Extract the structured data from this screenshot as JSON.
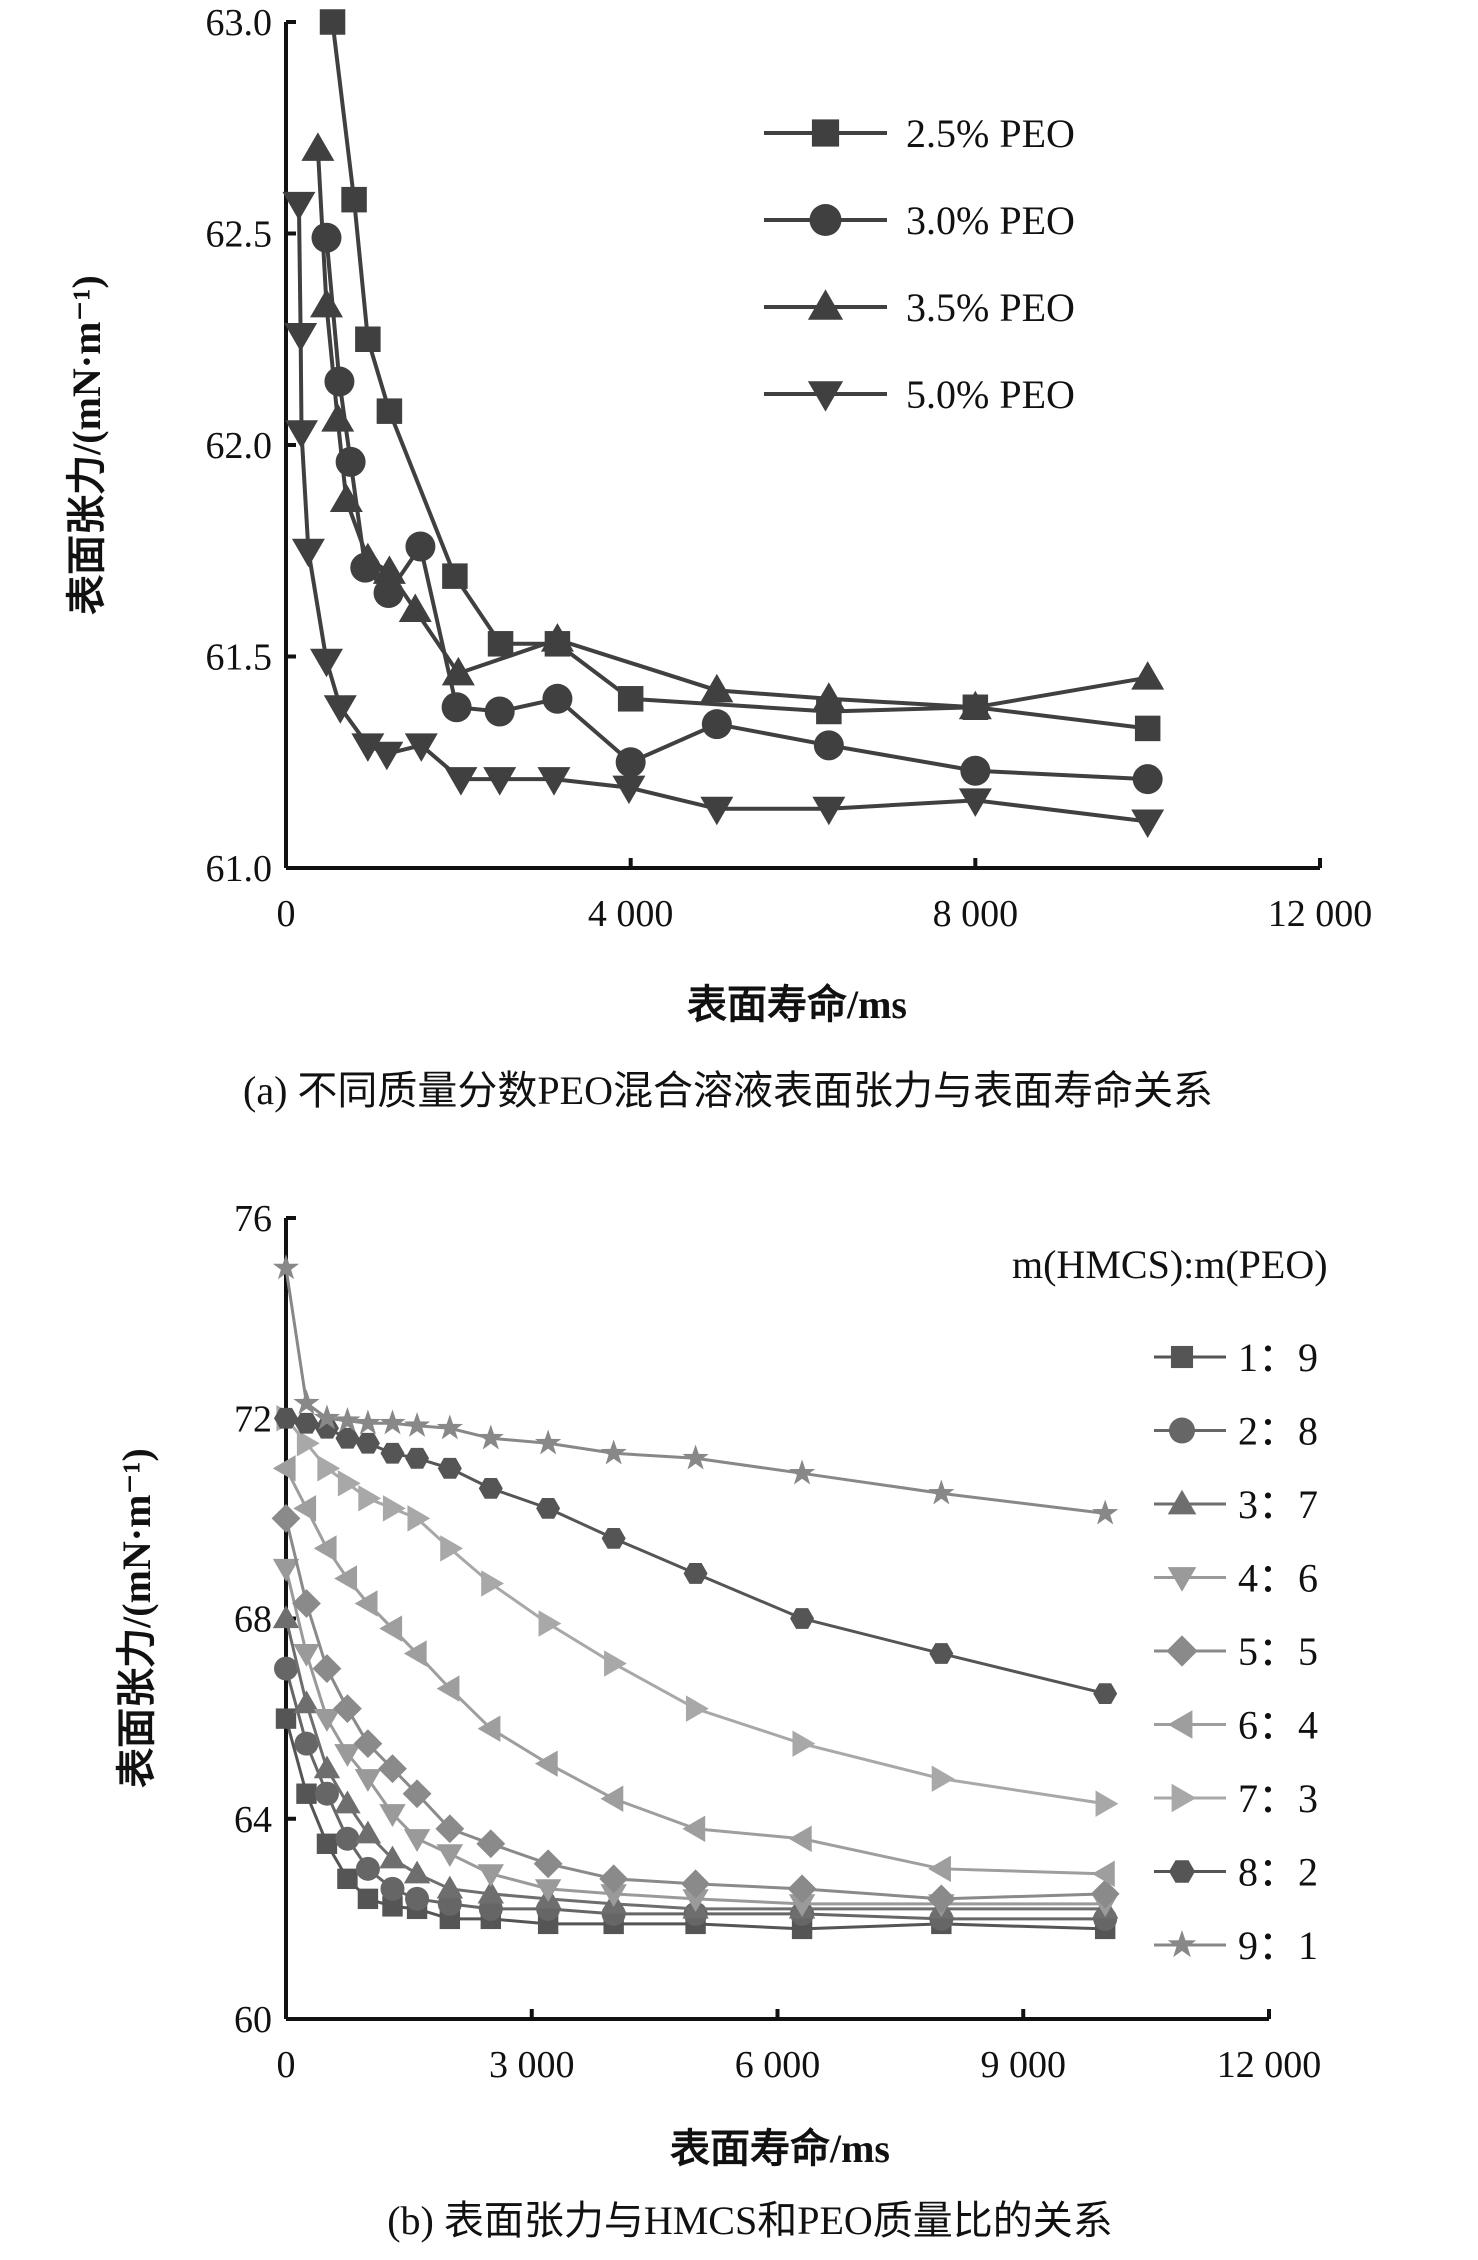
{
  "chart_data": [
    {
      "type": "line",
      "title": "(a) 不同质量分数PEO混合溶液表面张力与表面寿命关系",
      "xlabel": "表面寿命/ms",
      "ylabel": "表面张力/(mN·m⁻¹)",
      "xlim": [
        0,
        12000
      ],
      "ylim": [
        61.0,
        63.0
      ],
      "xticks": [
        0,
        4000,
        8000,
        12000
      ],
      "xtick_labels": [
        "0",
        "4 000",
        "8 000",
        "12 000"
      ],
      "yticks": [
        61.0,
        61.5,
        62.0,
        62.5,
        63.0
      ],
      "ytick_labels": [
        "61.0",
        "61.5",
        "62.0",
        "62.5",
        "63.0"
      ],
      "legend_position": "top-right",
      "series": [
        {
          "name": "2.5% PEO",
          "marker": "square",
          "color": "#404040",
          "x": [
            540,
            790,
            950,
            1200,
            1960,
            2490,
            3150,
            4000,
            6300,
            8000,
            10000
          ],
          "y": [
            63.0,
            62.58,
            62.25,
            62.08,
            61.69,
            61.53,
            61.53,
            61.4,
            61.37,
            61.38,
            61.33
          ]
        },
        {
          "name": "3.0% PEO",
          "marker": "circle",
          "color": "#404040",
          "x": [
            470,
            620,
            750,
            920,
            1190,
            1560,
            1980,
            2480,
            3150,
            4000,
            5000,
            6300,
            8000,
            10000
          ],
          "y": [
            62.49,
            62.15,
            61.96,
            61.71,
            61.65,
            61.76,
            61.38,
            61.37,
            61.4,
            61.25,
            61.34,
            61.29,
            61.23,
            61.21
          ]
        },
        {
          "name": "3.5% PEO",
          "marker": "triangle-up",
          "color": "#404040",
          "x": [
            370,
            470,
            600,
            700,
            950,
            1200,
            1500,
            2000,
            3150,
            5000,
            6300,
            8000,
            10000
          ],
          "y": [
            62.7,
            62.33,
            62.06,
            61.87,
            61.73,
            61.7,
            61.61,
            61.46,
            61.54,
            61.42,
            61.4,
            61.38,
            61.45
          ]
        },
        {
          "name": "5.0% PEO",
          "marker": "triangle-down",
          "color": "#404040",
          "x": [
            150,
            170,
            180,
            260,
            470,
            630,
            950,
            1170,
            1570,
            2030,
            2480,
            3110,
            3980,
            5000,
            6300,
            8000,
            10000
          ],
          "y": [
            62.57,
            62.26,
            62.03,
            61.75,
            61.49,
            61.38,
            61.29,
            61.27,
            61.29,
            61.21,
            61.21,
            61.21,
            61.19,
            61.14,
            61.14,
            61.16,
            61.11
          ]
        }
      ]
    },
    {
      "type": "line",
      "title": "(b) 表面张力与HMCS和PEO质量比的关系",
      "xlabel": "表面寿命/ms",
      "ylabel": "表面张力/(mN·m⁻¹)",
      "xlim": [
        0,
        12000
      ],
      "ylim": [
        60,
        76
      ],
      "xticks": [
        0,
        3000,
        6000,
        9000,
        12000
      ],
      "xtick_labels": [
        "0",
        "3 000",
        "6 000",
        "9 000",
        "12 000"
      ],
      "yticks": [
        60,
        64,
        68,
        72,
        76
      ],
      "ytick_labels": [
        "60",
        "64",
        "68",
        "72",
        "76"
      ],
      "legend_title": "m(HMCS):m(PEO)",
      "legend_position": "right",
      "x": [
        0,
        250,
        500,
        750,
        1000,
        1300,
        1600,
        2000,
        2500,
        3200,
        4000,
        5000,
        6300,
        8000,
        10000
      ],
      "series": [
        {
          "name": "1：9",
          "marker": "square",
          "color": "#555555",
          "y": [
            66.0,
            64.5,
            63.5,
            62.8,
            62.4,
            62.25,
            62.2,
            62.0,
            62.0,
            61.9,
            61.9,
            61.9,
            61.8,
            61.9,
            61.8
          ]
        },
        {
          "name": "2：8",
          "marker": "circle",
          "color": "#666666",
          "y": [
            67.0,
            65.5,
            64.5,
            63.6,
            63.0,
            62.6,
            62.4,
            62.3,
            62.2,
            62.2,
            62.1,
            62.1,
            62.1,
            62.0,
            62.0
          ]
        },
        {
          "name": "3：7",
          "marker": "triangle-up",
          "color": "#6e6e6e",
          "y": [
            68.0,
            66.3,
            65.0,
            64.3,
            63.7,
            63.2,
            62.9,
            62.6,
            62.5,
            62.4,
            62.3,
            62.2,
            62.2,
            62.2,
            62.2
          ]
        },
        {
          "name": "4：6",
          "marker": "triangle-down",
          "color": "#9a9a9a",
          "y": [
            69.0,
            67.3,
            66.0,
            65.3,
            64.8,
            64.1,
            63.6,
            63.3,
            62.9,
            62.6,
            62.5,
            62.4,
            62.3,
            62.3,
            62.3
          ]
        },
        {
          "name": "5：5",
          "marker": "diamond",
          "color": "#8a8a8a",
          "y": [
            70.0,
            68.3,
            67.0,
            66.2,
            65.5,
            65.0,
            64.5,
            63.8,
            63.5,
            63.1,
            62.8,
            62.7,
            62.6,
            62.4,
            62.5
          ]
        },
        {
          "name": "6：4",
          "marker": "triangle-left",
          "color": "#9e9e9e",
          "y": [
            71.0,
            70.2,
            69.4,
            68.8,
            68.3,
            67.8,
            67.3,
            66.6,
            65.8,
            65.1,
            64.4,
            63.8,
            63.6,
            63.0,
            62.9
          ]
        },
        {
          "name": "7：3",
          "marker": "triangle-right",
          "color": "#a8a8a8",
          "y": [
            72.0,
            71.5,
            71.0,
            70.7,
            70.4,
            70.2,
            70.0,
            69.4,
            68.7,
            67.9,
            67.1,
            66.2,
            65.5,
            64.8,
            64.3
          ]
        },
        {
          "name": "8：2",
          "marker": "hexagon",
          "color": "#555555",
          "y": [
            72.0,
            71.9,
            71.8,
            71.6,
            71.5,
            71.3,
            71.2,
            71.0,
            70.6,
            70.2,
            69.6,
            68.9,
            68.0,
            67.3,
            66.5
          ]
        },
        {
          "name": "9：1",
          "marker": "star",
          "color": "#888888",
          "y": [
            75.0,
            72.3,
            72.0,
            71.95,
            71.9,
            71.9,
            71.85,
            71.8,
            71.6,
            71.5,
            71.3,
            71.2,
            70.9,
            70.5,
            70.1
          ]
        }
      ]
    }
  ]
}
